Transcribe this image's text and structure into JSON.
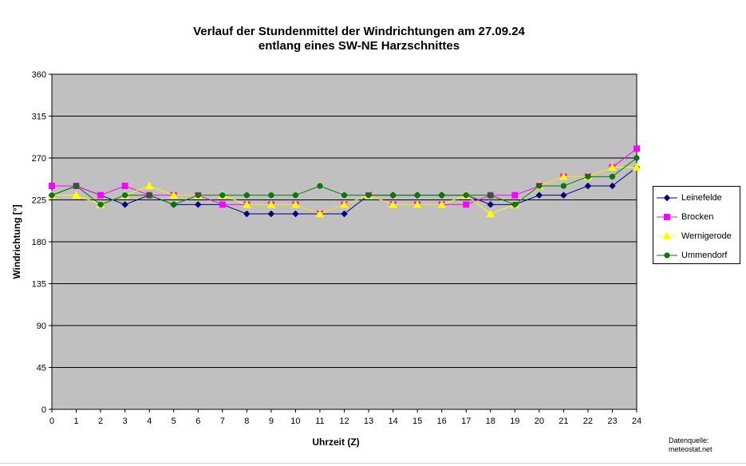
{
  "title_line1": "Verlauf der Stundenmittel der Windrichtungen am 27.09.24",
  "title_line2": "entlang eines SW-NE Harzschnittes",
  "source_line1": "Datenquelle:",
  "source_line2": "meteostat.net",
  "chart_data": {
    "type": "line",
    "title": "Verlauf der Stundenmittel der Windrichtungen am 27.09.24 entlang eines SW-NE Harzschnittes",
    "xlabel": "Uhrzeit (Z)",
    "ylabel": "Windrichtung [°]",
    "x": [
      0,
      1,
      2,
      3,
      4,
      5,
      6,
      7,
      8,
      9,
      10,
      11,
      12,
      13,
      14,
      15,
      16,
      17,
      18,
      19,
      20,
      21,
      22,
      23,
      24
    ],
    "xlim": [
      0,
      24
    ],
    "ylim": [
      0,
      360
    ],
    "yticks": [
      0,
      45,
      90,
      135,
      180,
      225,
      270,
      315,
      360
    ],
    "grid": true,
    "plot_background": "#c0c0c0",
    "legend_position": "right",
    "series": [
      {
        "name": "Leinefelde",
        "color": "#000080",
        "marker": "diamond",
        "values": [
          230,
          240,
          230,
          220,
          230,
          220,
          220,
          220,
          210,
          210,
          210,
          210,
          210,
          230,
          230,
          230,
          230,
          230,
          220,
          220,
          230,
          230,
          240,
          240,
          260
        ]
      },
      {
        "name": "Brocken",
        "color": "#ff00ff",
        "marker": "square",
        "values": [
          240,
          240,
          230,
          240,
          230,
          230,
          230,
          220,
          220,
          220,
          220,
          210,
          220,
          230,
          220,
          220,
          220,
          220,
          230,
          230,
          240,
          250,
          250,
          260,
          280
        ]
      },
      {
        "name": "Wernigerode",
        "color": "#ffff00",
        "marker": "triangle",
        "values": [
          230,
          230,
          220,
          230,
          240,
          230,
          230,
          230,
          220,
          220,
          220,
          210,
          220,
          230,
          220,
          220,
          220,
          230,
          210,
          220,
          240,
          250,
          250,
          260,
          260
        ]
      },
      {
        "name": "Ummendorf",
        "color": "#008000",
        "marker": "circle",
        "values": [
          230,
          240,
          220,
          230,
          230,
          220,
          230,
          230,
          230,
          230,
          230,
          240,
          230,
          230,
          230,
          230,
          230,
          230,
          230,
          220,
          240,
          240,
          250,
          250,
          270
        ]
      }
    ]
  }
}
